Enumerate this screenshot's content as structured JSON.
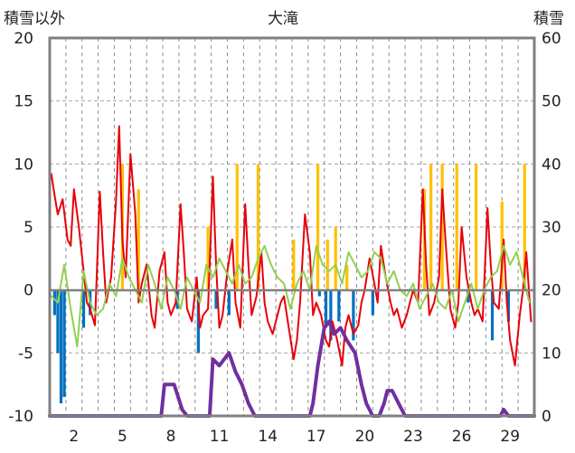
{
  "chart_data": {
    "type": "line",
    "title": "大滝",
    "y_left_label": "積雪以外",
    "y_right_label": "積雪",
    "y_left_range": [
      -10,
      20
    ],
    "y_left_ticks": [
      "-10",
      "-5",
      "0",
      "5",
      "10",
      "15",
      "20"
    ],
    "y_right_range": [
      0,
      60
    ],
    "y_right_ticks": [
      "0",
      "10",
      "20",
      "30",
      "40",
      "50",
      "60"
    ],
    "x_range": [
      0.5,
      30.5
    ],
    "x_ticks": [
      "2",
      "5",
      "8",
      "11",
      "14",
      "17",
      "20",
      "23",
      "26",
      "29"
    ],
    "grid": true,
    "x_dashed_gridlines_every_day": true,
    "series": [
      {
        "axis": "left",
        "style": "line",
        "color": "#e8000a",
        "x": [
          0.6,
          0.8,
          1.0,
          1.3,
          1.6,
          1.8,
          2.0,
          2.3,
          2.6,
          2.8,
          3.0,
          3.3,
          3.6,
          3.8,
          4.0,
          4.3,
          4.6,
          4.8,
          5.0,
          5.2,
          5.5,
          5.8,
          6.0,
          6.2,
          6.5,
          6.8,
          7.0,
          7.3,
          7.6,
          7.8,
          8.0,
          8.3,
          8.6,
          8.8,
          9.0,
          9.3,
          9.6,
          9.8,
          10.0,
          10.3,
          10.6,
          10.8,
          11.0,
          11.2,
          11.5,
          11.8,
          12.0,
          12.3,
          12.6,
          12.8,
          13.0,
          13.3,
          13.6,
          13.8,
          14.0,
          14.3,
          14.6,
          14.8,
          15.0,
          15.3,
          15.6,
          15.8,
          16.0,
          16.3,
          16.6,
          16.8,
          17.0,
          17.3,
          17.6,
          17.8,
          18.0,
          18.3,
          18.6,
          18.8,
          19.0,
          19.3,
          19.6,
          19.8,
          20.0,
          20.3,
          20.6,
          20.8,
          21.0,
          21.3,
          21.6,
          21.8,
          22.0,
          22.3,
          22.6,
          22.8,
          23.0,
          23.3,
          23.6,
          23.8,
          24.0,
          24.3,
          24.6,
          24.8,
          25.0,
          25.3,
          25.6,
          25.8,
          26.0,
          26.3,
          26.6,
          26.8,
          27.0,
          27.3,
          27.6,
          27.8,
          28.0,
          28.3,
          28.6,
          28.8,
          29.0,
          29.3,
          29.6,
          29.8,
          30.0,
          30.3
        ],
        "values": [
          9.2,
          7.5,
          6.0,
          7.2,
          4.0,
          3.5,
          8.0,
          5.0,
          1.5,
          -1.0,
          -1.5,
          -2.8,
          7.8,
          3.0,
          -1.0,
          1.0,
          7.0,
          13.0,
          4.0,
          1.0,
          10.8,
          6.0,
          -1.0,
          0.5,
          2.0,
          -2.0,
          -3.0,
          1.5,
          3.0,
          -1.0,
          -2.0,
          -1.0,
          6.8,
          3.0,
          -1.5,
          -2.5,
          1.0,
          -3.0,
          -2.0,
          -1.5,
          9.0,
          2.0,
          -3.0,
          -2.0,
          1.5,
          4.0,
          -1.0,
          -3.0,
          6.8,
          2.0,
          -2.0,
          -0.5,
          3.0,
          -1.0,
          -2.5,
          -3.5,
          -2.0,
          -1.0,
          -0.5,
          -3.0,
          -5.5,
          -4.0,
          -1.0,
          6.0,
          3.0,
          -2.0,
          -1.0,
          -2.0,
          -4.0,
          -4.5,
          -2.5,
          -4.0,
          -6.0,
          -3.0,
          -2.0,
          -3.5,
          -2.8,
          -1.0,
          0.0,
          2.5,
          0.5,
          -1.0,
          3.5,
          1.0,
          -1.0,
          -2.0,
          -1.5,
          -3.0,
          -2.0,
          -1.0,
          0.0,
          -1.0,
          8.0,
          2.0,
          -2.0,
          -1.0,
          1.0,
          8.0,
          4.0,
          -1.5,
          -3.0,
          -1.0,
          5.0,
          1.0,
          -1.0,
          -2.0,
          -1.5,
          -2.5,
          6.5,
          2.0,
          -1.0,
          -1.5,
          4.0,
          -1.0,
          -4.0,
          -6.0,
          -2.0,
          0.0,
          3.0,
          -2.5
        ]
      },
      {
        "axis": "left",
        "style": "line",
        "color": "#92d050",
        "x": [
          0.6,
          1.0,
          1.4,
          1.8,
          2.2,
          2.6,
          3.0,
          3.4,
          3.8,
          4.2,
          4.6,
          5.0,
          5.4,
          5.8,
          6.2,
          6.6,
          7.0,
          7.4,
          7.8,
          8.2,
          8.6,
          9.0,
          9.4,
          9.8,
          10.2,
          10.6,
          11.0,
          11.4,
          11.8,
          12.2,
          12.6,
          13.0,
          13.4,
          13.8,
          14.2,
          14.6,
          15.0,
          15.4,
          15.8,
          16.2,
          16.6,
          17.0,
          17.4,
          17.8,
          18.2,
          18.6,
          19.0,
          19.4,
          19.8,
          20.2,
          20.6,
          21.0,
          21.4,
          21.8,
          22.2,
          22.6,
          23.0,
          23.4,
          23.8,
          24.2,
          24.6,
          25.0,
          25.4,
          25.8,
          26.2,
          26.6,
          27.0,
          27.4,
          27.8,
          28.2,
          28.6,
          29.0,
          29.4,
          29.8,
          30.2
        ],
        "values": [
          -0.5,
          -1.0,
          2.0,
          -1.5,
          -4.5,
          1.5,
          -1.0,
          -2.0,
          -1.5,
          0.5,
          -0.5,
          2.5,
          1.0,
          0.0,
          -1.0,
          2.0,
          0.5,
          -1.5,
          1.0,
          0.0,
          -1.5,
          1.0,
          0.0,
          -1.0,
          2.0,
          1.0,
          2.5,
          1.5,
          0.5,
          2.0,
          0.5,
          1.0,
          2.5,
          3.5,
          2.0,
          1.0,
          0.5,
          -1.5,
          0.5,
          1.5,
          0.0,
          3.5,
          2.0,
          1.5,
          2.0,
          0.5,
          3.0,
          2.0,
          1.0,
          1.5,
          3.0,
          2.5,
          0.5,
          1.5,
          0.0,
          -0.5,
          0.5,
          -1.5,
          -0.5,
          0.5,
          -1.0,
          -1.5,
          0.0,
          -2.5,
          -1.0,
          0.5,
          -1.5,
          0.0,
          1.0,
          1.5,
          3.5,
          2.0,
          3.0,
          1.0,
          -1.0
        ]
      },
      {
        "axis": "left",
        "style": "bar",
        "color": "#ffc000",
        "x": [
          5.0,
          6.0,
          10.3,
          12.1,
          13.4,
          15.6,
          17.1,
          17.7,
          18.2,
          18.9,
          23.7,
          24.1,
          24.8,
          25.7,
          26.9,
          28.5,
          29.9
        ],
        "values": [
          10.0,
          8.0,
          5.0,
          10.0,
          10.0,
          4.0,
          10.0,
          4.0,
          5.0,
          2.0,
          8.0,
          10.0,
          10.0,
          10.0,
          10.0,
          7.0,
          10.0
        ]
      },
      {
        "axis": "left",
        "style": "bar",
        "color": "#0070c0",
        "x": [
          0.8,
          1.0,
          1.2,
          1.4,
          2.6,
          3.0,
          8.4,
          9.7,
          10.8,
          11.6,
          17.2,
          17.6,
          17.9,
          18.4,
          19.3,
          20.5,
          26.4,
          27.9,
          28.9
        ],
        "values": [
          -2.0,
          -5.0,
          -9.0,
          -8.5,
          -3.0,
          -2.0,
          -1.5,
          -5.0,
          -1.5,
          -2.0,
          -0.5,
          -3.0,
          -4.0,
          -2.5,
          -4.0,
          -2.0,
          -1.0,
          -4.0,
          -2.5
        ]
      },
      {
        "axis": "right",
        "style": "line",
        "color": "#7030a0",
        "x": [
          0.5,
          7.4,
          7.6,
          8.2,
          8.7,
          9.0,
          9.5,
          10.4,
          10.6,
          11.0,
          11.6,
          12.0,
          12.4,
          12.8,
          13.2,
          16.6,
          16.8,
          17.1,
          17.5,
          17.8,
          18.1,
          18.5,
          18.9,
          19.4,
          19.8,
          20.1,
          20.5,
          20.9,
          21.2,
          21.4,
          21.7,
          22.1,
          22.5,
          22.8,
          23.1,
          28.4,
          28.6,
          28.9,
          30.5
        ],
        "values": [
          0,
          0,
          5,
          5,
          1,
          0,
          0,
          0,
          9,
          8,
          10,
          7,
          5,
          2,
          0,
          0,
          2,
          8,
          14,
          15,
          13,
          14,
          12,
          10,
          5,
          2,
          0,
          0,
          2,
          4,
          4,
          2,
          0,
          0,
          0,
          0,
          1,
          0,
          0
        ]
      }
    ]
  }
}
